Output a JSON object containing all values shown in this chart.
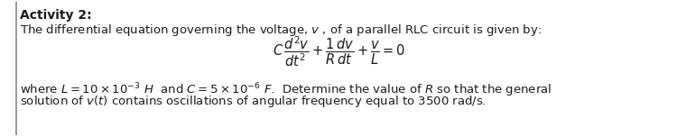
{
  "title": "Activity 2:",
  "line1": "The differential equation governing the voltage, $v$ , of a parallel RLC circuit is given by:",
  "equation": "$C\\,\\dfrac{d^2v}{dt^2} + \\dfrac{1}{R}\\dfrac{dv}{dt} + \\dfrac{v}{L} = 0$",
  "line3": "where $L = 10 \\times 10^{-3}$ $H$  and $C = 5 \\times 10^{-6}$ $F$.  Determine the value of $R$ so that the general",
  "line4": "solution of $v(t)$ contains oscillations of angular frequency equal to 3500 rad/s.",
  "bg_color": "#ffffff",
  "left_border_color": "#888888",
  "text_color": "#1a1a1a",
  "font_size": 9.5,
  "title_font_size": 10.0,
  "eq_font_size": 10.5
}
